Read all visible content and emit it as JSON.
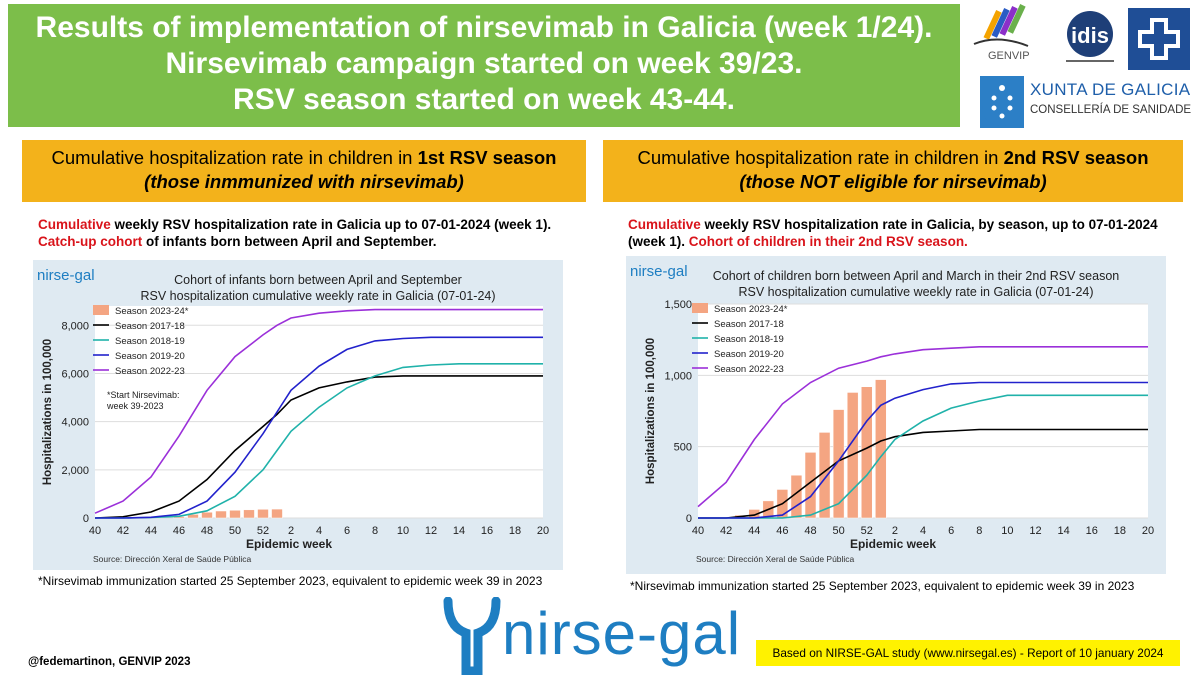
{
  "header": {
    "line1": "Results of implementation of nirsevimab in Galicia (week 1/24).",
    "line2": "Nirsevimab campaign started on week 39/23.",
    "line3": "RSV season started on week 43-44."
  },
  "logos": {
    "genvip": "GENVIP",
    "idis": "idis",
    "xunta_title": "XUNTA DE GALICIA",
    "xunta_sub": "CONSELLERÍA DE SANIDADE",
    "brand": "nirse-gal"
  },
  "left": {
    "header_plain": "Cumulative hospitalization rate in children in ",
    "header_bold": "1st RSV season",
    "header_sub": "(those inmmunized with nirsevimab)",
    "desc_red1": "Cumulative",
    "desc_text1": " weekly RSV hospitalization rate in Galicia up to 07-01-2024 (week 1). ",
    "desc_red2": "Catch-up cohort",
    "desc_text2": " of infants born between April and September.",
    "footnote": "*Nirsevimab immunization started 25 September 2023, equivalent to epidemic week 39 in 2023"
  },
  "right": {
    "header_plain": "Cumulative hospitalization rate in children in ",
    "header_bold": "2nd RSV season",
    "header_sub": "(those NOT eligible for nirsevimab)",
    "desc_red1": "Cumulative",
    "desc_text1": " weekly RSV hospitalization rate in Galicia, by season, up to 07-01-2024 (week 1). ",
    "desc_red2": "Cohort of children in their 2nd RSV season.",
    "footnote": "*Nirsevimab immunization started 25 September 2023, equivalent to epidemic week 39 in 2023"
  },
  "footer": {
    "credit": "@fedemartinon, GENVIP 2023",
    "study": "Based on NIRSE-GAL study (www.nirsegal.es) - Report of 10 january 2024"
  },
  "colors": {
    "banner": "#7cbe4a",
    "section_header": "#f3b21b",
    "bars": "#f4a582",
    "s2017": "#000000",
    "s2018": "#20b2aa",
    "s2019": "#2222cc",
    "s2022": "#9b30d9"
  },
  "chart_data": [
    {
      "type": "line",
      "brand": "nirse-gal",
      "title": "Cohort of infants born between April and September",
      "subtitle": "RSV hospitalization cumulative weekly rate in Galicia (07-01-24)",
      "xlabel": "Epidemic week",
      "ylabel": "Hospitalizations in 100,000",
      "source": "Source: Dirección Xeral de Saúde Pública",
      "annotation": "*Start Nirsevimab: week 39-2023",
      "x_ticks": [
        "40",
        "42",
        "44",
        "46",
        "48",
        "50",
        "52",
        "2",
        "4",
        "6",
        "8",
        "10",
        "12",
        "14",
        "16",
        "18",
        "20"
      ],
      "y_ticks": [
        "0",
        "2,000",
        "4,000",
        "6,000",
        "8,000"
      ],
      "ylim": [
        0,
        8800
      ],
      "bar_series": {
        "name": "Season 2023-24*",
        "x": [
          46,
          47,
          48,
          49,
          50,
          51,
          52,
          53
        ],
        "values": [
          60,
          150,
          240,
          290,
          320,
          340,
          360,
          370
        ]
      },
      "series": [
        {
          "name": "Season 2017-18",
          "color_key": "s2017",
          "points": [
            [
              40,
              0
            ],
            [
              42,
              50
            ],
            [
              44,
              250
            ],
            [
              46,
              700
            ],
            [
              48,
              1600
            ],
            [
              50,
              2800
            ],
            [
              52,
              3800
            ],
            [
              53,
              4300
            ],
            [
              54,
              4900
            ],
            [
              56,
              5400
            ],
            [
              58,
              5650
            ],
            [
              60,
              5850
            ],
            [
              62,
              5900
            ],
            [
              64,
              5900
            ],
            [
              66,
              5900
            ],
            [
              68,
              5900
            ],
            [
              70,
              5900
            ],
            [
              72,
              5900
            ]
          ]
        },
        {
          "name": "Season 2018-19",
          "color_key": "s2018",
          "points": [
            [
              40,
              0
            ],
            [
              42,
              0
            ],
            [
              44,
              20
            ],
            [
              46,
              70
            ],
            [
              48,
              300
            ],
            [
              50,
              900
            ],
            [
              52,
              2000
            ],
            [
              53,
              2800
            ],
            [
              54,
              3600
            ],
            [
              56,
              4600
            ],
            [
              58,
              5400
            ],
            [
              60,
              5900
            ],
            [
              62,
              6250
            ],
            [
              64,
              6350
            ],
            [
              66,
              6400
            ],
            [
              68,
              6400
            ],
            [
              70,
              6400
            ],
            [
              72,
              6400
            ]
          ]
        },
        {
          "name": "Season 2019-20",
          "color_key": "s2019",
          "points": [
            [
              40,
              0
            ],
            [
              42,
              0
            ],
            [
              44,
              30
            ],
            [
              46,
              150
            ],
            [
              48,
              700
            ],
            [
              50,
              1900
            ],
            [
              52,
              3500
            ],
            [
              53,
              4400
            ],
            [
              54,
              5300
            ],
            [
              56,
              6300
            ],
            [
              58,
              7000
            ],
            [
              60,
              7350
            ],
            [
              62,
              7450
            ],
            [
              64,
              7500
            ],
            [
              66,
              7500
            ],
            [
              68,
              7500
            ],
            [
              70,
              7500
            ],
            [
              72,
              7500
            ]
          ]
        },
        {
          "name": "Season 2022-23",
          "color_key": "s2022",
          "points": [
            [
              40,
              200
            ],
            [
              42,
              700
            ],
            [
              44,
              1700
            ],
            [
              46,
              3400
            ],
            [
              48,
              5300
            ],
            [
              50,
              6700
            ],
            [
              52,
              7600
            ],
            [
              53,
              8000
            ],
            [
              54,
              8300
            ],
            [
              56,
              8500
            ],
            [
              58,
              8600
            ],
            [
              60,
              8650
            ],
            [
              62,
              8650
            ],
            [
              64,
              8650
            ],
            [
              66,
              8650
            ],
            [
              68,
              8650
            ],
            [
              70,
              8650
            ],
            [
              72,
              8650
            ]
          ]
        }
      ]
    },
    {
      "type": "line",
      "brand": "nirse-gal",
      "title": "Cohort of children born between April and March in their 2nd RSV season",
      "subtitle": "RSV hospitalization cumulative weekly rate in Galicia (07-01-24)",
      "xlabel": "Epidemic week",
      "ylabel": "Hospitalizations in 100,000",
      "source": "Source: Dirección Xeral de Saúde Pública",
      "x_ticks": [
        "40",
        "42",
        "44",
        "46",
        "48",
        "50",
        "52",
        "2",
        "4",
        "6",
        "8",
        "10",
        "12",
        "14",
        "16",
        "18",
        "20"
      ],
      "y_ticks": [
        "0",
        "500",
        "1,000",
        "1,500"
      ],
      "ylim": [
        0,
        1500
      ],
      "bar_series": {
        "name": "Season 2023-24*",
        "x": [
          43,
          44,
          45,
          46,
          47,
          48,
          49,
          50,
          51,
          52,
          53
        ],
        "values": [
          20,
          60,
          120,
          200,
          300,
          460,
          600,
          760,
          880,
          920,
          970
        ]
      },
      "series": [
        {
          "name": "Season 2017-18",
          "color_key": "s2017",
          "points": [
            [
              40,
              0
            ],
            [
              42,
              0
            ],
            [
              44,
              20
            ],
            [
              46,
              100
            ],
            [
              48,
              250
            ],
            [
              50,
              400
            ],
            [
              52,
              490
            ],
            [
              53,
              540
            ],
            [
              54,
              570
            ],
            [
              56,
              600
            ],
            [
              58,
              610
            ],
            [
              60,
              620
            ],
            [
              62,
              620
            ],
            [
              64,
              620
            ],
            [
              66,
              620
            ],
            [
              68,
              620
            ],
            [
              70,
              620
            ],
            [
              72,
              620
            ]
          ]
        },
        {
          "name": "Season 2018-19",
          "color_key": "s2018",
          "points": [
            [
              40,
              0
            ],
            [
              42,
              0
            ],
            [
              44,
              0
            ],
            [
              46,
              0
            ],
            [
              48,
              20
            ],
            [
              50,
              100
            ],
            [
              52,
              300
            ],
            [
              53,
              430
            ],
            [
              54,
              550
            ],
            [
              56,
              680
            ],
            [
              58,
              770
            ],
            [
              60,
              820
            ],
            [
              62,
              860
            ],
            [
              64,
              860
            ],
            [
              66,
              860
            ],
            [
              68,
              860
            ],
            [
              70,
              860
            ],
            [
              72,
              860
            ]
          ]
        },
        {
          "name": "Season 2019-20",
          "color_key": "s2019",
          "points": [
            [
              40,
              0
            ],
            [
              42,
              0
            ],
            [
              44,
              0
            ],
            [
              46,
              20
            ],
            [
              48,
              150
            ],
            [
              50,
              400
            ],
            [
              52,
              680
            ],
            [
              53,
              790
            ],
            [
              54,
              840
            ],
            [
              56,
              900
            ],
            [
              58,
              940
            ],
            [
              60,
              950
            ],
            [
              62,
              950
            ],
            [
              64,
              950
            ],
            [
              66,
              950
            ],
            [
              68,
              950
            ],
            [
              70,
              950
            ],
            [
              72,
              950
            ]
          ]
        },
        {
          "name": "Season 2022-23",
          "color_key": "s2022",
          "points": [
            [
              40,
              80
            ],
            [
              42,
              250
            ],
            [
              44,
              550
            ],
            [
              46,
              800
            ],
            [
              48,
              950
            ],
            [
              50,
              1050
            ],
            [
              52,
              1100
            ],
            [
              53,
              1130
            ],
            [
              54,
              1150
            ],
            [
              56,
              1180
            ],
            [
              58,
              1190
            ],
            [
              60,
              1200
            ],
            [
              62,
              1200
            ],
            [
              64,
              1200
            ],
            [
              66,
              1200
            ],
            [
              68,
              1200
            ],
            [
              70,
              1200
            ],
            [
              72,
              1200
            ]
          ]
        }
      ]
    }
  ]
}
